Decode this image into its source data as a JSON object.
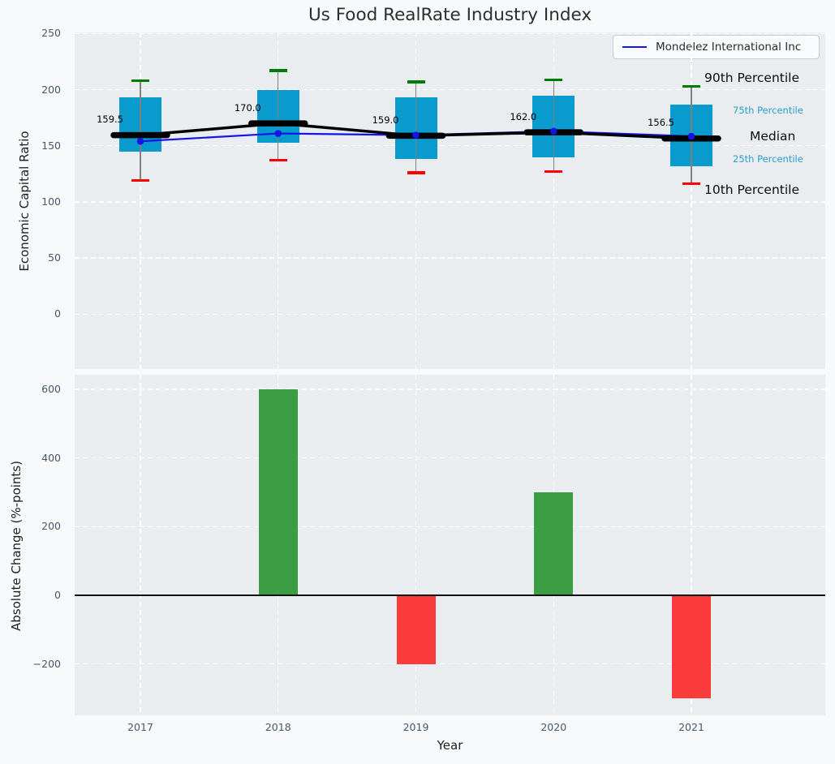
{
  "title": "Us Food RealRate Industry Index",
  "legend": {
    "label": "Mondelez International Inc"
  },
  "annotations": {
    "p90": "90th Percentile",
    "p75": "75th Percentile",
    "median": "Median",
    "p25": "25th Percentile",
    "p10": "10th Percentile"
  },
  "colors": {
    "figure_background": "#f7f9fa",
    "panel_background": "#e9edf0",
    "gridline": "#ffffff",
    "box_fill": "#0a9bce",
    "whisker": "#808080",
    "cap_90th": "#007d00",
    "cap_10th": "#ff0000",
    "median": "#000000",
    "company_line": "#1414e8",
    "bar_positive": "#3c9e42",
    "bar_negative": "#fa3b3b",
    "tick_label": "#46586d",
    "zero_line": "#111111"
  },
  "chart_data": [
    {
      "type": "boxplot+line",
      "title": "Us Food RealRate Industry Index",
      "ylabel": "Economic Capital Ratio",
      "categories": [
        "2017",
        "2018",
        "2019",
        "2020",
        "2021"
      ],
      "yticks": [
        0,
        50,
        100,
        150,
        200,
        250
      ],
      "ylim": [
        -48,
        251
      ],
      "grid": true,
      "legend_position": "upper right",
      "boxes": [
        {
          "year": "2017",
          "p10": 119,
          "p25": 145,
          "median": 159.5,
          "p75": 193,
          "p90": 208
        },
        {
          "year": "2018",
          "p10": 137,
          "p25": 153,
          "median": 170.0,
          "p75": 200,
          "p90": 217
        },
        {
          "year": "2019",
          "p10": 126,
          "p25": 138,
          "median": 159.0,
          "p75": 193,
          "p90": 207
        },
        {
          "year": "2020",
          "p10": 127,
          "p25": 140,
          "median": 162.0,
          "p75": 195,
          "p90": 209
        },
        {
          "year": "2021",
          "p10": 116,
          "p25": 132,
          "median": 156.5,
          "p75": 187,
          "p90": 203
        }
      ],
      "median_value_labels": [
        "159.5",
        "170.0",
        "159.0",
        "162.0",
        "156.5"
      ],
      "series": [
        {
          "name": "Mondelez International Inc",
          "values": [
            154,
            161,
            159.5,
            163,
            158.5
          ],
          "color": "#1414e8"
        }
      ],
      "percentile_annotations": [
        "90th Percentile",
        "75th Percentile",
        "Median",
        "25th Percentile",
        "10th Percentile"
      ]
    },
    {
      "type": "bar",
      "categories": [
        "2017",
        "2018",
        "2019",
        "2020",
        "2021"
      ],
      "values": [
        null,
        600,
        -200,
        300,
        -300
      ],
      "ylabel": "Absolute Change (%-points)",
      "xlabel": "Year",
      "yticks": [
        -200,
        0,
        200,
        400,
        600
      ],
      "ylim": [
        -350,
        645
      ],
      "positive_color": "#3c9e42",
      "negative_color": "#fa3b3b"
    }
  ]
}
